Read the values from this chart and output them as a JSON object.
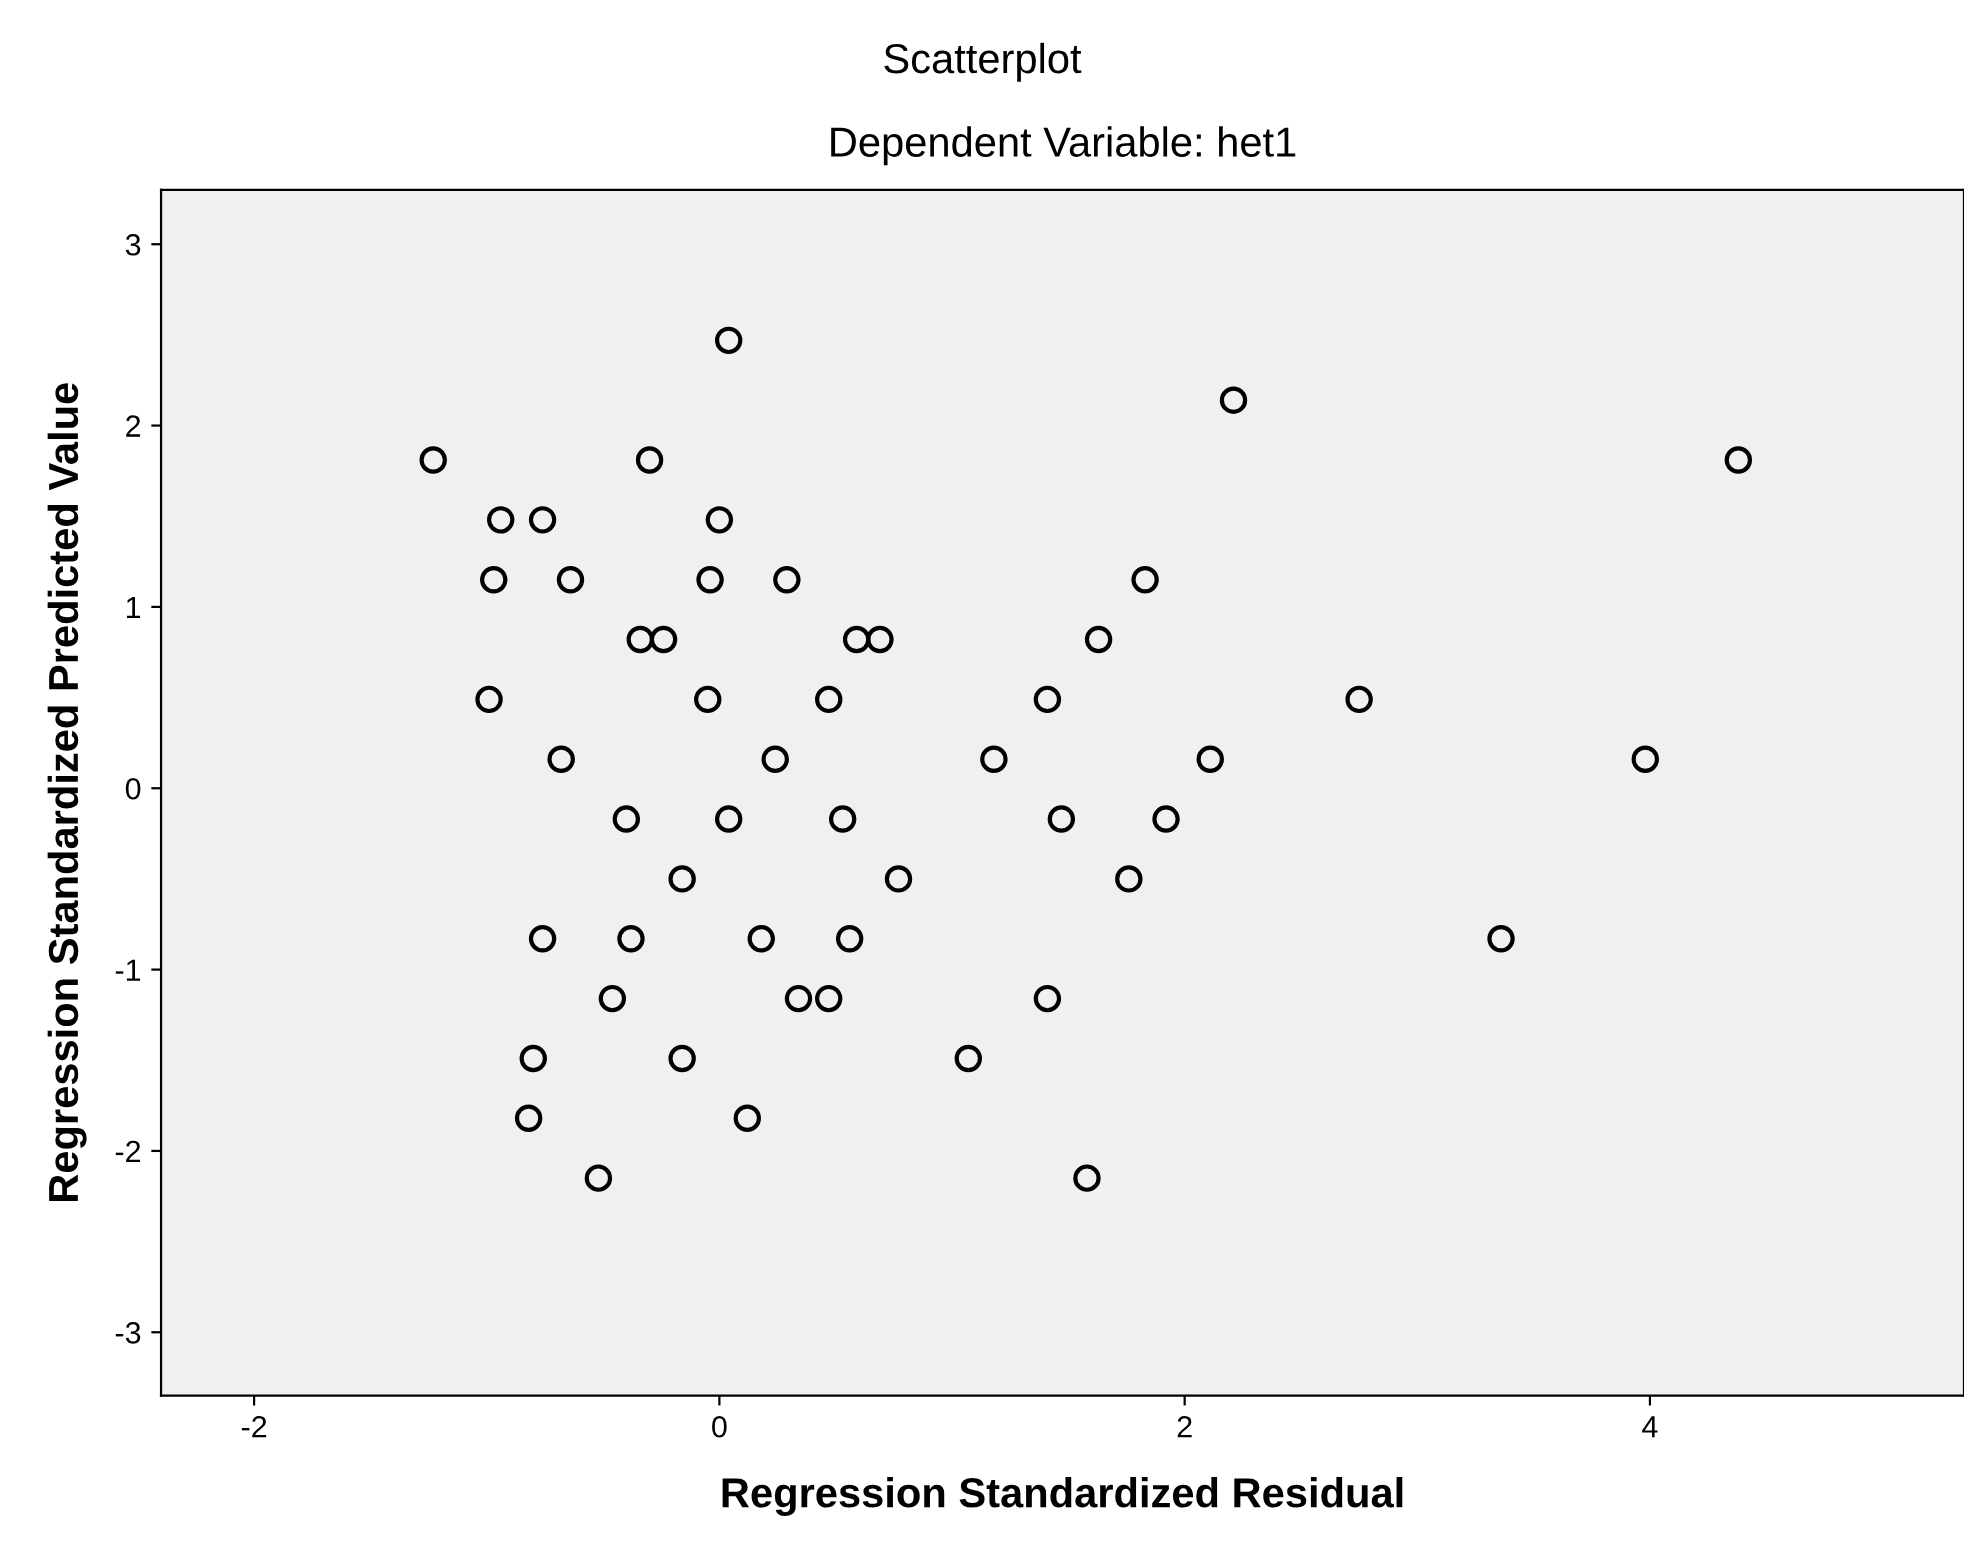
{
  "chart_data": {
    "type": "scatter",
    "title": "Scatterplot",
    "subtitle": "Dependent Variable: het1",
    "xlabel": "Regression Standardized Residual",
    "ylabel": "Regression Standardized Predicted Value",
    "xlim": [
      -2.4,
      5.35
    ],
    "ylim": [
      -3.35,
      3.3
    ],
    "xticks": [
      -2,
      0,
      2,
      4
    ],
    "yticks": [
      -3,
      -2,
      -1,
      0,
      1,
      2,
      3
    ],
    "grid": false,
    "marker": "circle",
    "legend": false,
    "series": [
      {
        "color": "#000000",
        "x": [
          0.04,
          2.21,
          -1.23,
          -0.3,
          4.38,
          -0.94,
          -0.76,
          0.0,
          -0.97,
          -0.64,
          -0.04,
          0.29,
          1.83,
          -0.34,
          -0.24,
          0.59,
          0.69,
          1.63,
          -0.99,
          -0.05,
          0.47,
          1.41,
          2.75,
          -0.68,
          0.24,
          1.18,
          2.11,
          3.98,
          -0.4,
          0.04,
          0.53,
          1.47,
          1.92,
          -0.16,
          0.77,
          1.76,
          -0.76,
          -0.38,
          0.18,
          0.56,
          3.36,
          -0.46,
          0.34,
          0.47,
          1.41,
          -0.8,
          -0.16,
          1.07,
          -0.82,
          0.12,
          -0.52,
          1.58
        ],
        "values": [
          2.47,
          2.14,
          1.81,
          1.81,
          1.81,
          1.48,
          1.48,
          1.48,
          1.15,
          1.15,
          1.15,
          1.15,
          1.15,
          0.82,
          0.82,
          0.82,
          0.82,
          0.82,
          0.49,
          0.49,
          0.49,
          0.49,
          0.49,
          0.16,
          0.16,
          0.16,
          0.16,
          0.16,
          -0.17,
          -0.17,
          -0.17,
          -0.17,
          -0.17,
          -0.5,
          -0.5,
          -0.5,
          -0.83,
          -0.83,
          -0.83,
          -0.83,
          -0.83,
          -1.16,
          -1.16,
          -1.16,
          -1.16,
          -1.49,
          -1.49,
          -1.49,
          -1.82,
          -1.82,
          -2.15,
          -2.15
        ]
      }
    ]
  }
}
